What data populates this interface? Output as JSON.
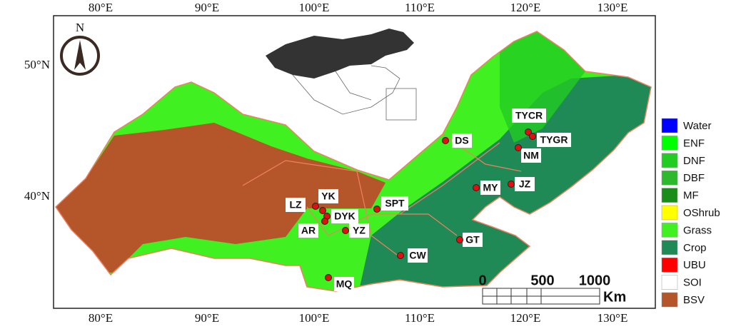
{
  "map": {
    "lon_labels": [
      "80°E",
      "90°E",
      "100°E",
      "110°E",
      "120°E",
      "130°E"
    ],
    "lat_labels": [
      "50°N",
      "40°N"
    ],
    "north": "N",
    "sites": [
      "TYCR",
      "TYGR",
      "DS",
      "NM",
      "MY",
      "JZ",
      "SPT",
      "YK",
      "LZ",
      "DYK",
      "AR",
      "YZ",
      "GT",
      "CW",
      "MQ"
    ],
    "legend": [
      {
        "name": "Water",
        "color": "#0000ff"
      },
      {
        "name": "ENF",
        "color": "#00ff00"
      },
      {
        "name": "DNF",
        "color": "#22cc22"
      },
      {
        "name": "DBF",
        "color": "#2eb82e"
      },
      {
        "name": "MF",
        "color": "#1a8c1a"
      },
      {
        "name": "OShrub",
        "color": "#ffff00"
      },
      {
        "name": "Grass",
        "color": "#40f020"
      },
      {
        "name": "Crop",
        "color": "#1f8a55"
      },
      {
        "name": "UBU",
        "color": "#ff0000"
      },
      {
        "name": "SOI",
        "color": "#ffffff"
      },
      {
        "name": "BSV",
        "color": "#b5562a"
      }
    ],
    "scale": {
      "labels": [
        "0",
        "500",
        "1000"
      ],
      "unit": "Km"
    }
  }
}
